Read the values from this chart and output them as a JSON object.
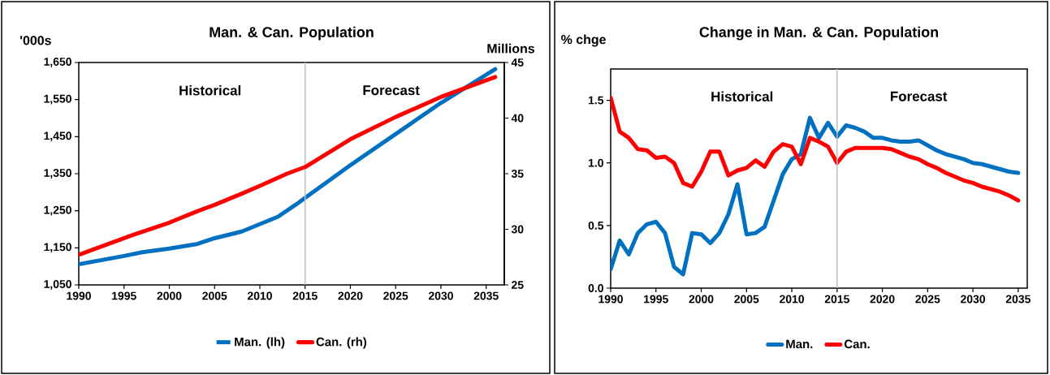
{
  "chart_data": [
    {
      "type": "line",
      "title": "Man. & Can. Population",
      "ylabel": "'000s",
      "y2label": "Millions",
      "xlim": [
        1990,
        2037
      ],
      "xticks": [
        1990,
        1995,
        2000,
        2005,
        2010,
        2015,
        2020,
        2025,
        2030,
        2035
      ],
      "ylim": [
        1050,
        1650
      ],
      "yticks": [
        {
          "value": 1050,
          "label": "1,050"
        },
        {
          "value": 1150,
          "label": "1,150"
        },
        {
          "value": 1250,
          "label": "1,250"
        },
        {
          "value": 1350,
          "label": "1,350"
        },
        {
          "value": 1450,
          "label": "1,450"
        },
        {
          "value": 1550,
          "label": "1,550"
        },
        {
          "value": 1650,
          "label": "1,650"
        }
      ],
      "y2lim": [
        25,
        45
      ],
      "y2ticks": [
        25,
        30,
        35,
        40,
        45
      ],
      "series": [
        {
          "name": "Man. (lh)",
          "color": "#0070c0",
          "x": [
            1990,
            1995,
            1997,
            2000,
            2003,
            2005,
            2008,
            2010,
            2012,
            2014,
            2015,
            2020,
            2025,
            2030,
            2036
          ],
          "values": [
            1106,
            1128,
            1138,
            1148,
            1160,
            1176,
            1194,
            1214,
            1234,
            1267,
            1285,
            1373,
            1457,
            1541,
            1632
          ]
        },
        {
          "name": "Can. (rh)",
          "color": "#ff0000",
          "axis": "y2",
          "x": [
            1990,
            1993,
            1996,
            2000,
            2003,
            2005,
            2008,
            2010,
            2013,
            2015,
            2020,
            2025,
            2030,
            2036
          ],
          "values": [
            27.7,
            28.6,
            29.5,
            30.6,
            31.6,
            32.2,
            33.2,
            33.9,
            35.0,
            35.6,
            38.1,
            40.1,
            41.9,
            43.7
          ]
        }
      ],
      "ref_lines": [
        {
          "axis": "x",
          "value": 2015,
          "color": "#bfbfbf"
        }
      ],
      "annotations": [
        "Historical",
        "Forecast"
      ],
      "legend": "bottom"
    },
    {
      "type": "line",
      "title": "Change in Man. & Can. Population",
      "ylabel": "% chge",
      "xlim": [
        1990,
        2036
      ],
      "xticks": [
        1990,
        1995,
        2000,
        2005,
        2010,
        2015,
        2020,
        2025,
        2030,
        2035
      ],
      "ylim": [
        0,
        1.75
      ],
      "yticks": [
        {
          "value": 0,
          "label": "0.0"
        },
        {
          "value": 0.5,
          "label": "0.5"
        },
        {
          "value": 1,
          "label": "1.0"
        },
        {
          "value": 1.5,
          "label": "1.5"
        }
      ],
      "x": [
        1990,
        1991,
        1992,
        1993,
        1994,
        1995,
        1996,
        1997,
        1998,
        1999,
        2000,
        2001,
        2002,
        2003,
        2004,
        2005,
        2006,
        2007,
        2008,
        2009,
        2010,
        2011,
        2012,
        2013,
        2014,
        2015,
        2016,
        2017,
        2018,
        2019,
        2020,
        2021,
        2022,
        2023,
        2024,
        2025,
        2026,
        2027,
        2028,
        2029,
        2030,
        2031,
        2032,
        2033,
        2034,
        2035
      ],
      "series": [
        {
          "name": "Man.",
          "color": "#0070c0",
          "values": [
            0.15,
            0.38,
            0.27,
            0.44,
            0.51,
            0.53,
            0.44,
            0.17,
            0.11,
            0.44,
            0.43,
            0.36,
            0.44,
            0.59,
            0.83,
            0.43,
            0.44,
            0.49,
            0.7,
            0.91,
            1.03,
            1.07,
            1.36,
            1.2,
            1.32,
            1.21,
            1.3,
            1.28,
            1.25,
            1.2,
            1.2,
            1.18,
            1.17,
            1.17,
            1.18,
            1.14,
            1.1,
            1.07,
            1.05,
            1.03,
            1.0,
            0.99,
            0.97,
            0.95,
            0.93,
            0.92
          ]
        },
        {
          "name": "Can.",
          "color": "#ff0000",
          "values": [
            1.52,
            1.25,
            1.2,
            1.11,
            1.1,
            1.04,
            1.05,
            1.0,
            0.84,
            0.81,
            0.93,
            1.09,
            1.09,
            0.9,
            0.94,
            0.96,
            1.02,
            0.97,
            1.09,
            1.15,
            1.13,
            0.99,
            1.2,
            1.17,
            1.13,
            1.0,
            1.09,
            1.12,
            1.12,
            1.12,
            1.12,
            1.11,
            1.08,
            1.05,
            1.03,
            0.99,
            0.96,
            0.92,
            0.89,
            0.86,
            0.84,
            0.81,
            0.79,
            0.77,
            0.74,
            0.7
          ]
        }
      ],
      "ref_lines": [
        {
          "axis": "x",
          "value": 2015,
          "color": "#bfbfbf"
        }
      ],
      "annotations": [
        "Historical",
        "Forecast"
      ],
      "legend": "bottom"
    }
  ]
}
